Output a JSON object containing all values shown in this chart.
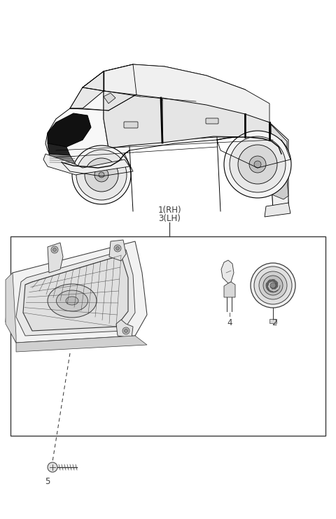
{
  "bg_color": "#ffffff",
  "label_1": "1(RH)",
  "label_3": "3(LH)",
  "label_2": "2",
  "label_4": "4",
  "label_5": "5",
  "line_color": "#3a3a3a",
  "font_size_label": 8.5,
  "car_color": "#000000",
  "part_fill": "#f8f8f8",
  "part_edge": "#3a3a3a"
}
